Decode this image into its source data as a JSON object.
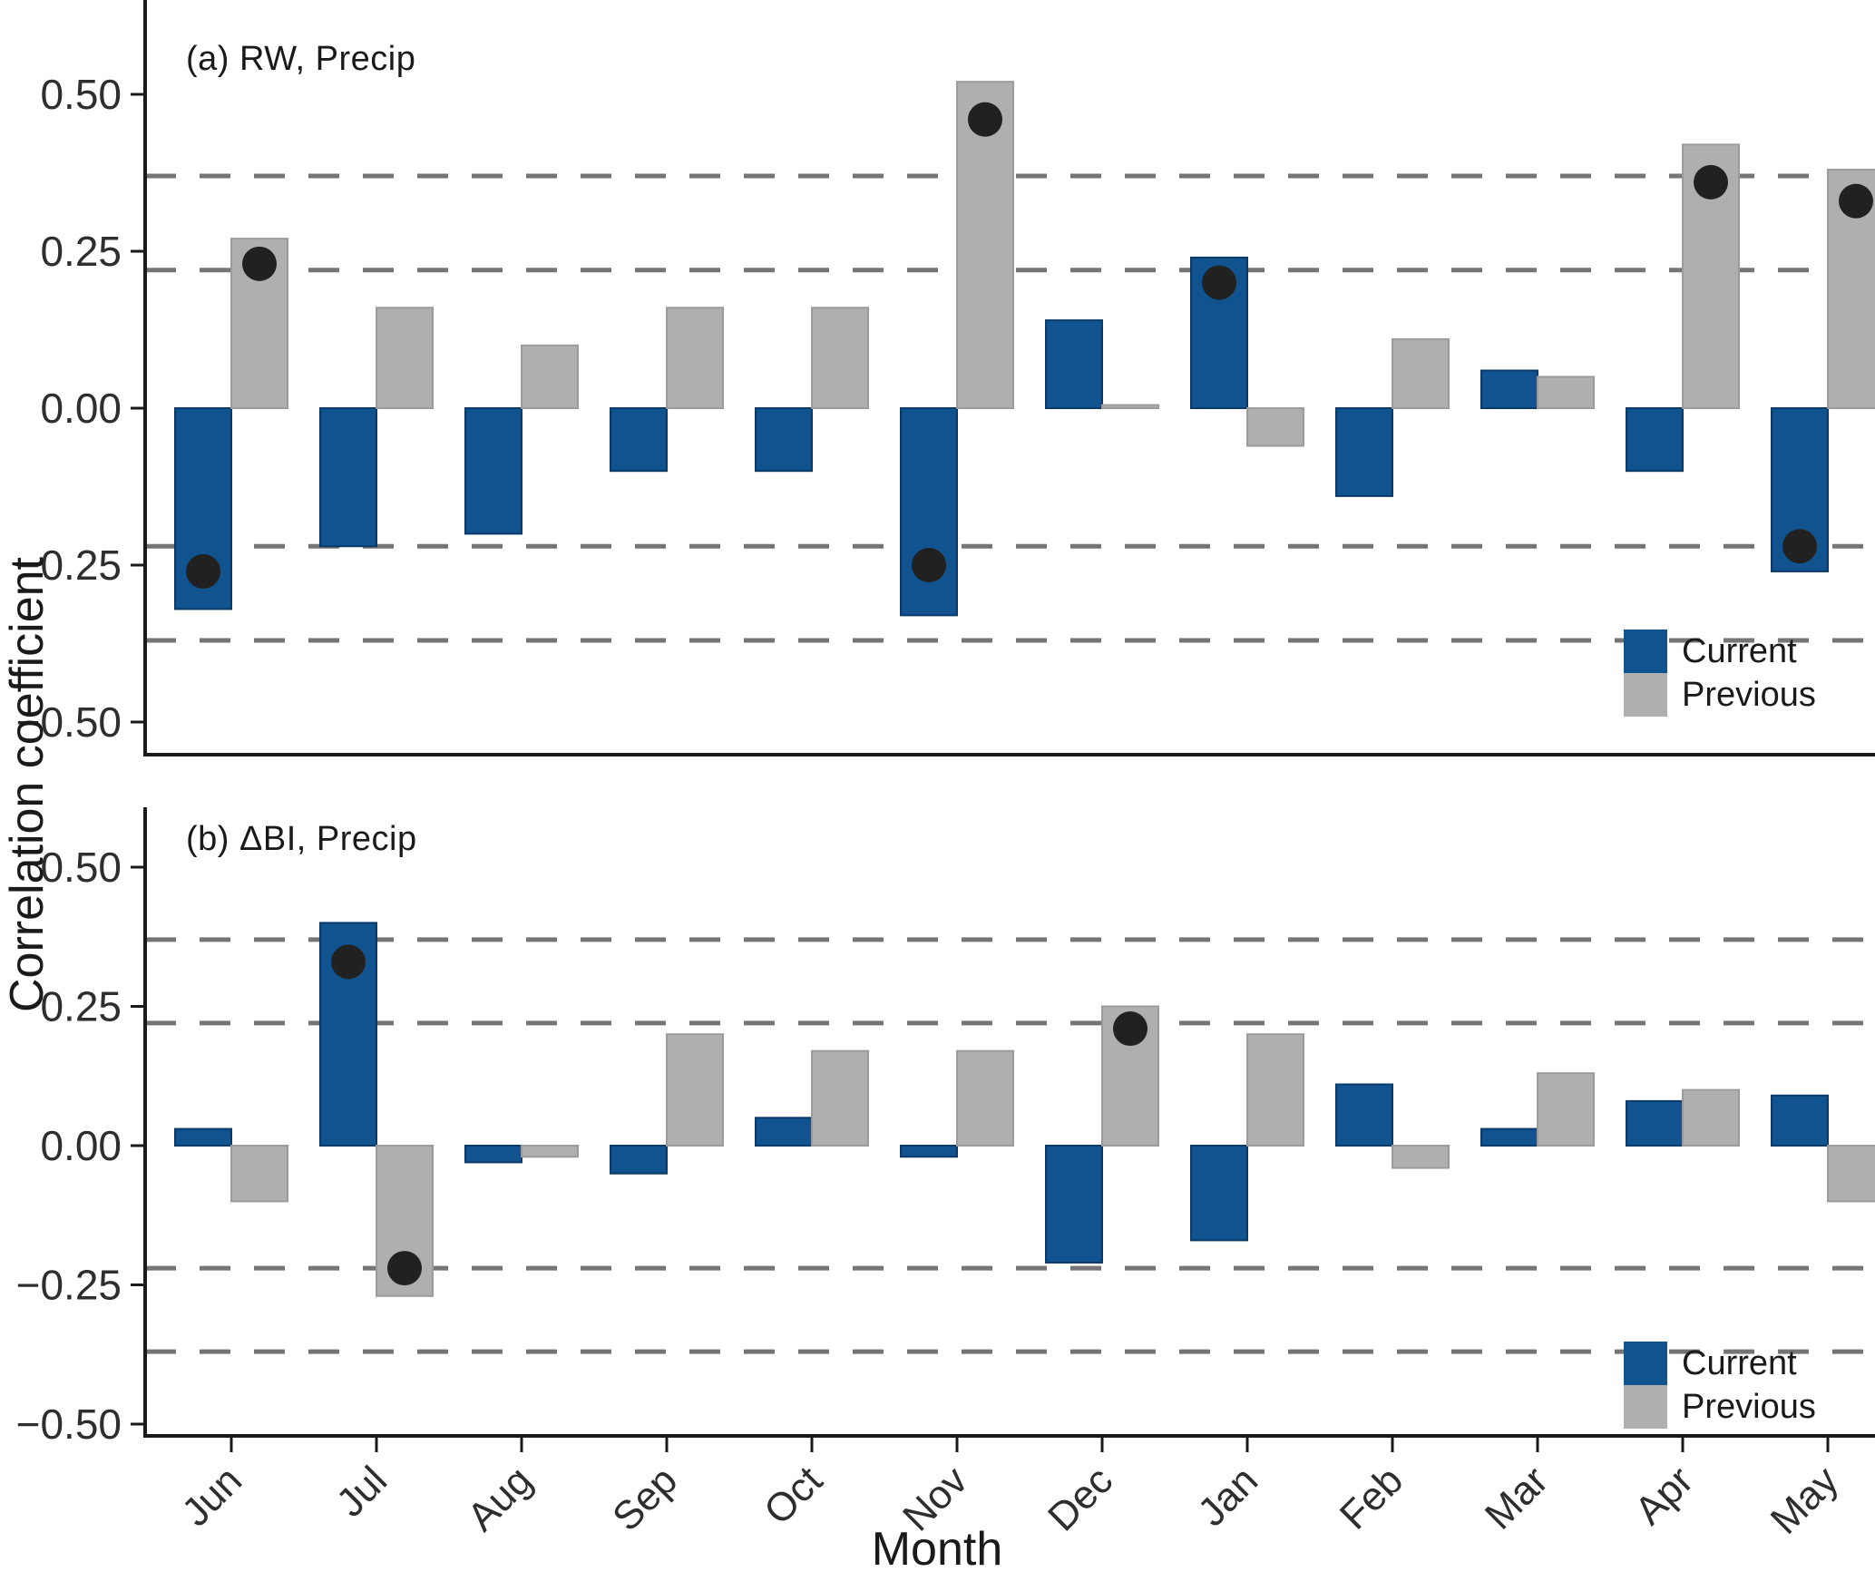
{
  "figure": {
    "y_axis_title": "Correlation coefficient",
    "x_axis_title": "Month",
    "legend": {
      "current_label": "Current",
      "previous_label": "Previous"
    },
    "colors": {
      "current": "#11538E",
      "current_border": "#0A3A69",
      "previous": "#AFAFAF",
      "previous_border": "#9B9B9B",
      "significance_dot": "#212121",
      "dashed_line": "#757575",
      "axis": "#1A1A1A",
      "tick_text": "#2E2E2E"
    }
  },
  "chart_data": [
    {
      "panel": "a",
      "type": "bar",
      "title": "(a) RW, Precip",
      "categories": [
        "Jun",
        "Jul",
        "Aug",
        "Sep",
        "Oct",
        "Nov",
        "Dec",
        "Jan",
        "Feb",
        "Mar",
        "Apr",
        "May"
      ],
      "series": [
        {
          "name": "Current",
          "values": [
            -0.32,
            -0.22,
            -0.2,
            -0.1,
            -0.1,
            -0.33,
            0.14,
            0.24,
            -0.14,
            0.06,
            -0.1,
            -0.26
          ]
        },
        {
          "name": "Previous",
          "values": [
            0.27,
            0.16,
            0.1,
            0.16,
            0.16,
            0.52,
            0.005,
            -0.06,
            0.11,
            0.05,
            0.42,
            0.38
          ]
        }
      ],
      "significant_dots": [
        {
          "month": "Jun",
          "series": "Current",
          "value": -0.26
        },
        {
          "month": "Jun",
          "series": "Previous",
          "value": 0.23
        },
        {
          "month": "Nov",
          "series": "Current",
          "value": -0.25
        },
        {
          "month": "Nov",
          "series": "Previous",
          "value": 0.46
        },
        {
          "month": "Jan",
          "series": "Current",
          "value": 0.2
        },
        {
          "month": "Apr",
          "series": "Previous",
          "value": 0.36
        },
        {
          "month": "May",
          "series": "Current",
          "value": -0.22
        },
        {
          "month": "May",
          "series": "Previous",
          "value": 0.33
        }
      ],
      "dashed_thresholds": [
        0.22,
        0.37
      ],
      "yticks": [
        {
          "value": 0.5,
          "label": "0.50"
        },
        {
          "value": 0.25,
          "label": "0.25"
        },
        {
          "value": 0.0,
          "label": "0.00"
        },
        {
          "value": -0.25,
          "label": "−0.25"
        },
        {
          "value": -0.5,
          "label": "−0.50"
        }
      ],
      "ylim": [
        -0.55,
        0.65
      ],
      "grid": "dashed significance lines only",
      "legend_position": "bottom-right inside panel"
    },
    {
      "panel": "b",
      "type": "bar",
      "title": "(b) ΔBI, Precip",
      "categories": [
        "Jun",
        "Jul",
        "Aug",
        "Sep",
        "Oct",
        "Nov",
        "Dec",
        "Jan",
        "Feb",
        "Mar",
        "Apr",
        "May"
      ],
      "series": [
        {
          "name": "Current",
          "values": [
            0.03,
            0.4,
            -0.03,
            -0.05,
            0.05,
            -0.02,
            -0.21,
            -0.17,
            0.11,
            0.03,
            0.08,
            0.09
          ]
        },
        {
          "name": "Previous",
          "values": [
            -0.1,
            -0.27,
            -0.02,
            0.2,
            0.17,
            0.17,
            0.25,
            0.2,
            -0.04,
            0.13,
            0.1,
            -0.1
          ]
        }
      ],
      "significant_dots": [
        {
          "month": "Jul",
          "series": "Current",
          "value": 0.33
        },
        {
          "month": "Jul",
          "series": "Previous",
          "value": -0.22
        },
        {
          "month": "Dec",
          "series": "Previous",
          "value": 0.21
        }
      ],
      "dashed_thresholds": [
        0.22,
        0.37
      ],
      "yticks": [
        {
          "value": 0.5,
          "label": "0.50"
        },
        {
          "value": 0.25,
          "label": "0.25"
        },
        {
          "value": 0.0,
          "label": "0.00"
        },
        {
          "value": -0.25,
          "label": "−0.25"
        },
        {
          "value": -0.5,
          "label": "−0.50"
        }
      ],
      "ylim": [
        -0.52,
        0.61
      ],
      "grid": "dashed significance lines only",
      "legend_position": "bottom-right inside panel"
    }
  ]
}
